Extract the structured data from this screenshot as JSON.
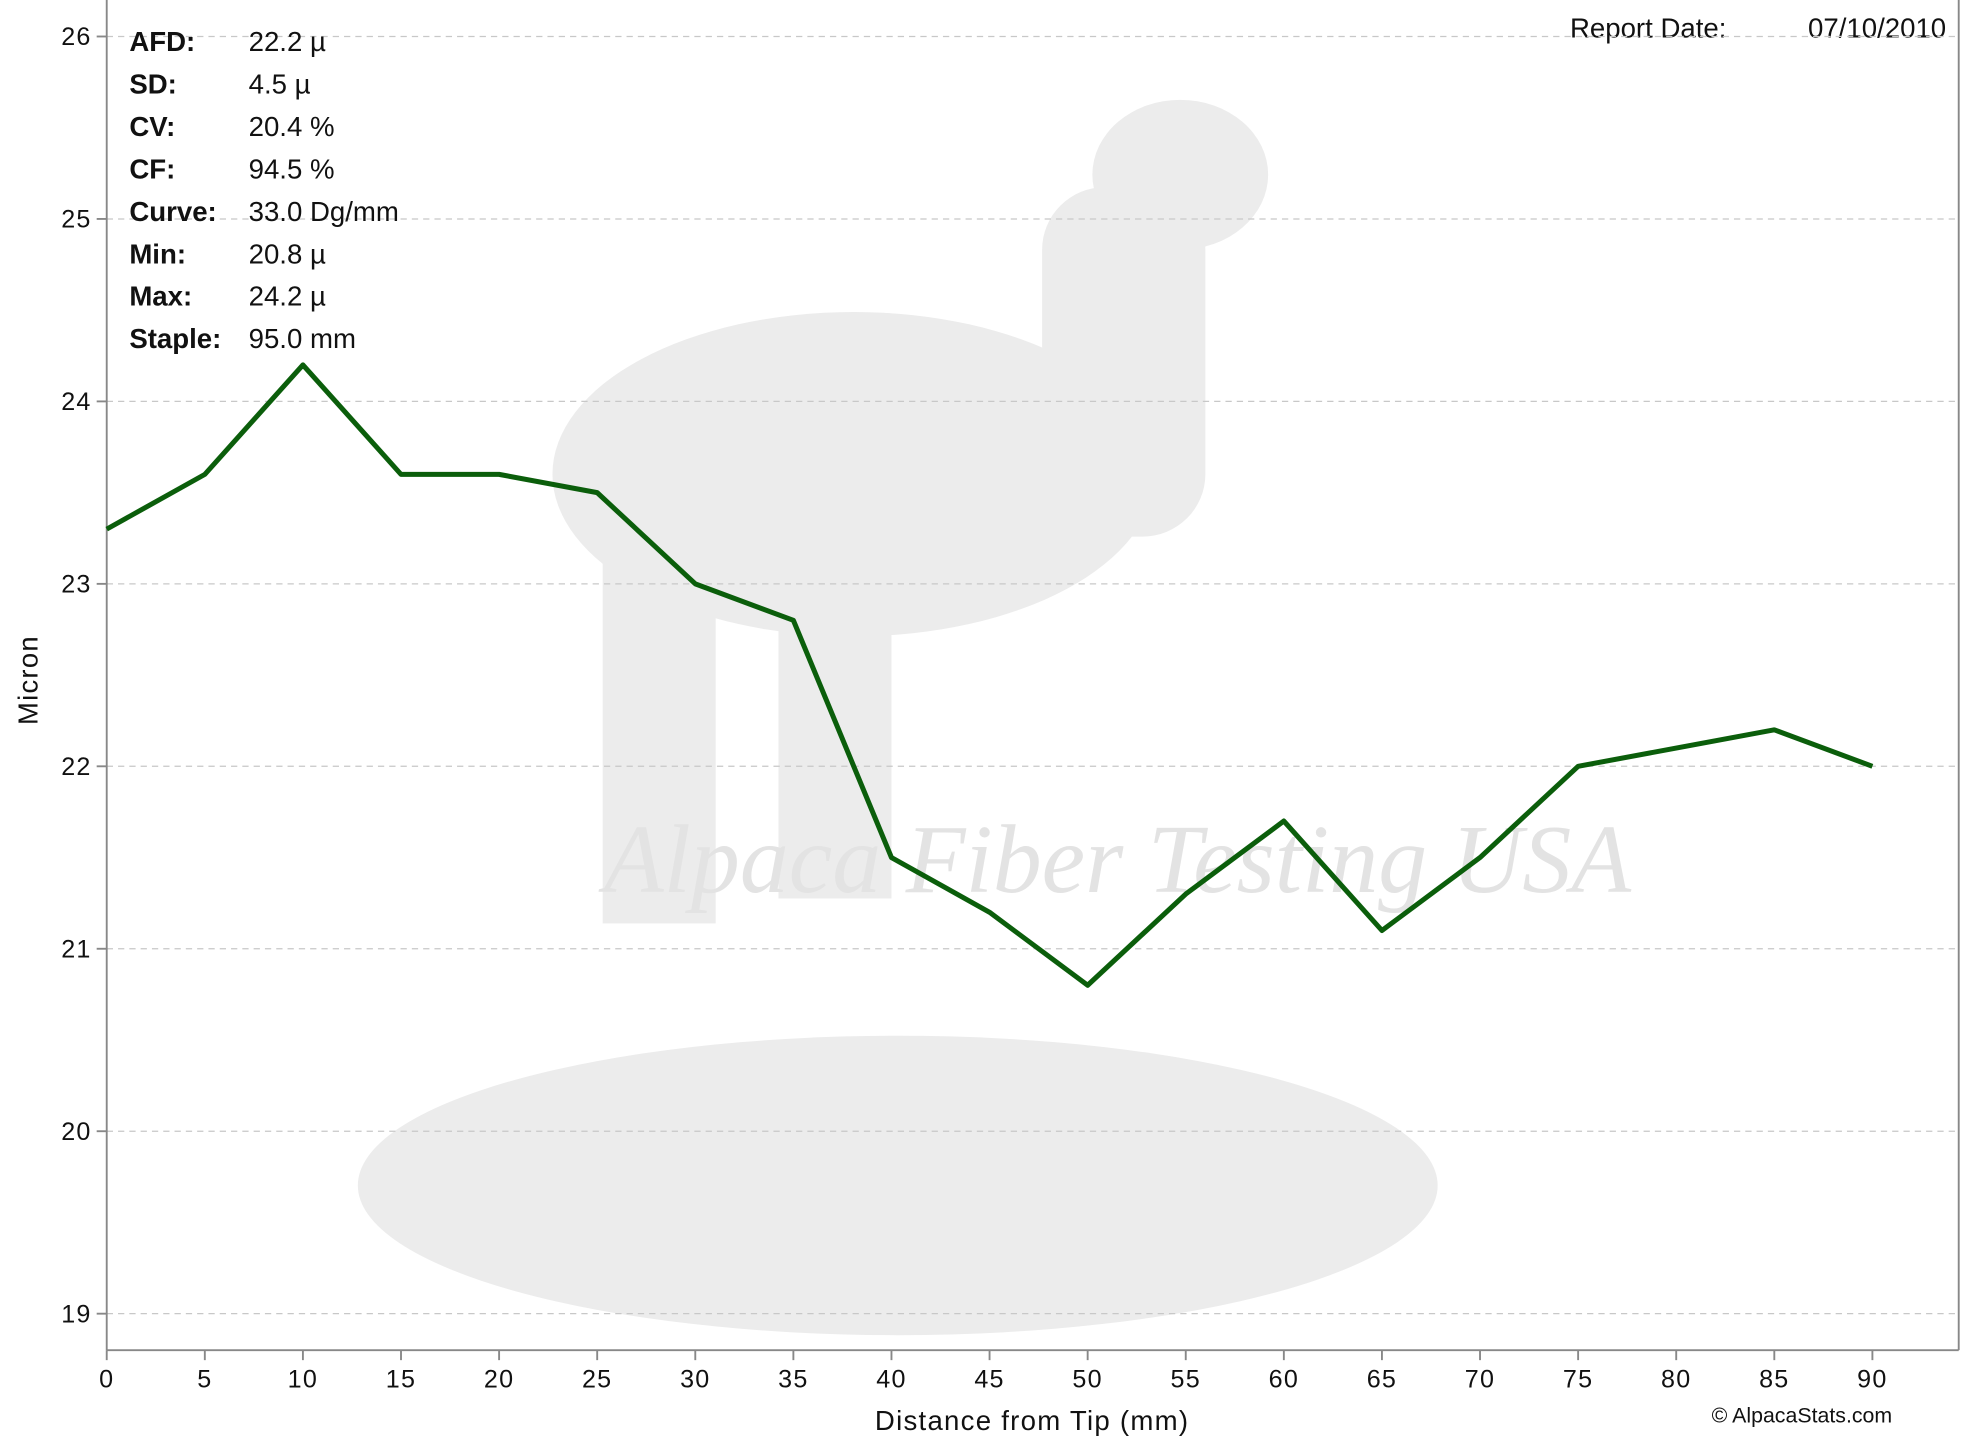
{
  "chart_data": {
    "type": "line",
    "x_label": "Distance from Tip (mm)",
    "y_label": "Micron",
    "report_date_label": "Report Date:",
    "report_date": "07/10/2010",
    "watermark": "Alpaca Fiber Testing USA",
    "copyright": "© AlpacaStats.com",
    "stats": [
      {
        "label": "AFD:",
        "value": "22.2 µ"
      },
      {
        "label": "SD:",
        "value": "4.5 µ"
      },
      {
        "label": "CV:",
        "value": "20.4 %"
      },
      {
        "label": "CF:",
        "value": "94.5 %"
      },
      {
        "label": "Curve:",
        "value": "33.0 Dg/mm"
      },
      {
        "label": "Min:",
        "value": "20.8 µ"
      },
      {
        "label": "Max:",
        "value": "24.2 µ"
      },
      {
        "label": "Staple:",
        "value": "95.0 mm"
      }
    ],
    "x": [
      0,
      5,
      10,
      15,
      20,
      25,
      30,
      35,
      40,
      45,
      50,
      55,
      60,
      65,
      70,
      75,
      80,
      85,
      90
    ],
    "series": [
      {
        "color": "#0b5e0b",
        "values": [
          23.3,
          23.6,
          24.2,
          23.6,
          23.6,
          23.5,
          23.0,
          22.8,
          21.5,
          21.2,
          20.8,
          21.3,
          21.7,
          21.1,
          21.5,
          22.0,
          22.1,
          22.2,
          22.0
        ]
      }
    ],
    "xlim": [
      0,
      94.4
    ],
    "ylim": [
      18.8,
      26.2
    ],
    "xticks": [
      0,
      5,
      10,
      15,
      20,
      25,
      30,
      35,
      40,
      45,
      50,
      55,
      60,
      65,
      70,
      75,
      80,
      85,
      90
    ],
    "yticks": [
      19,
      20,
      21,
      22,
      23,
      24,
      25,
      26
    ],
    "grid": true
  }
}
